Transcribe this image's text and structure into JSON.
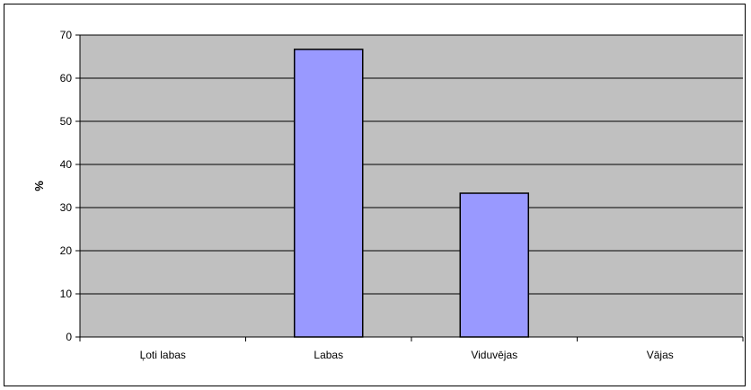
{
  "chart_data": {
    "type": "bar",
    "title": "",
    "xlabel": "",
    "ylabel": "%",
    "categories": [
      "Ļoti labas",
      "Labas",
      "Viduvējas",
      "Vājas"
    ],
    "values": [
      0,
      66.67,
      33.33,
      0
    ],
    "ylim": [
      0,
      70
    ],
    "yticks": [
      0,
      10,
      20,
      30,
      40,
      50,
      60,
      70
    ],
    "grid": true,
    "legend": "none",
    "colors": {
      "plot_background": "#c0c0c0",
      "bar_fill": "#9999ff",
      "bar_stroke": "#000000",
      "gridline": "#000000",
      "axis": "#000000"
    }
  }
}
